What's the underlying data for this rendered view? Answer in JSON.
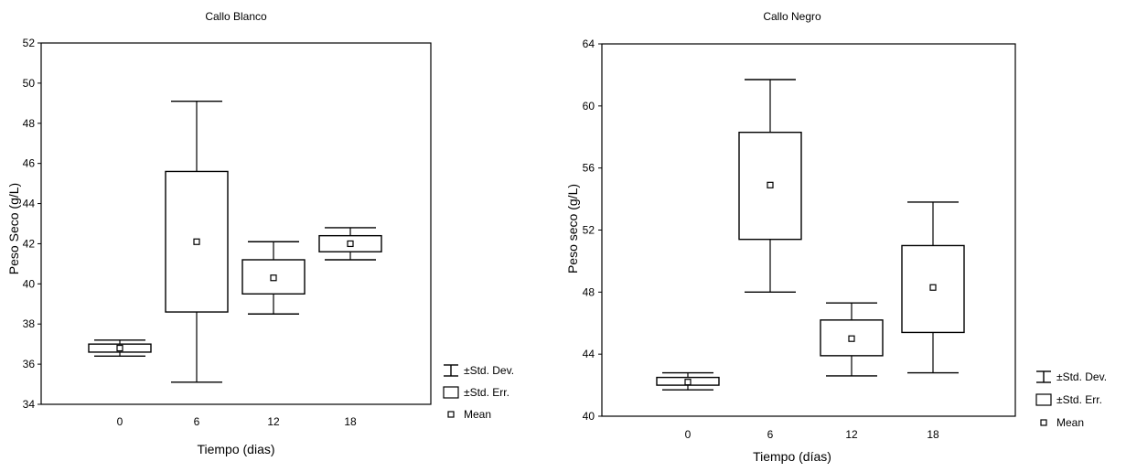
{
  "chart_data": [
    {
      "type": "box",
      "title": "Callo Blanco",
      "xlabel": "Tiempo (dias)",
      "ylabel": "Peso Seco (g/L)",
      "ylim": [
        34,
        52
      ],
      "yticks": [
        34,
        36,
        38,
        40,
        42,
        44,
        46,
        48,
        50,
        52
      ],
      "ytick_labels": [
        "34",
        "36",
        "38",
        "40",
        "42",
        "44",
        "46",
        "48",
        "50",
        "52"
      ],
      "categories": [
        "0",
        "6",
        "12",
        "18"
      ],
      "mean": [
        36.8,
        42.1,
        40.3,
        42.0
      ],
      "se_low": [
        36.6,
        38.6,
        39.5,
        41.6
      ],
      "se_high": [
        37.0,
        45.6,
        41.2,
        42.4
      ],
      "sd_low": [
        36.4,
        35.1,
        38.5,
        41.2
      ],
      "sd_high": [
        37.2,
        49.1,
        42.1,
        42.8
      ],
      "legend": [
        "±Std. Dev.",
        "±Std. Err.",
        "Mean"
      ],
      "legend_position": "right"
    },
    {
      "type": "box",
      "title": "Callo Negro",
      "xlabel": "Tiempo (días)",
      "ylabel": "Peso seco (g/L)",
      "ylim": [
        40,
        64
      ],
      "yticks": [
        40,
        44,
        48,
        52,
        56,
        60,
        64
      ],
      "ytick_labels": [
        "40",
        "44",
        "48",
        "52",
        "56",
        "60",
        "64"
      ],
      "categories": [
        "0",
        "6",
        "12",
        "18"
      ],
      "mean": [
        42.2,
        54.9,
        45.0,
        48.3
      ],
      "se_low": [
        42.0,
        51.4,
        43.9,
        45.4
      ],
      "se_high": [
        42.5,
        58.3,
        46.2,
        51.0
      ],
      "sd_low": [
        41.7,
        48.0,
        42.6,
        42.8
      ],
      "sd_high": [
        42.8,
        61.7,
        47.3,
        53.8
      ],
      "legend": [
        "±Std. Dev.",
        "±Std. Err.",
        "Mean"
      ],
      "legend_position": "right"
    }
  ]
}
